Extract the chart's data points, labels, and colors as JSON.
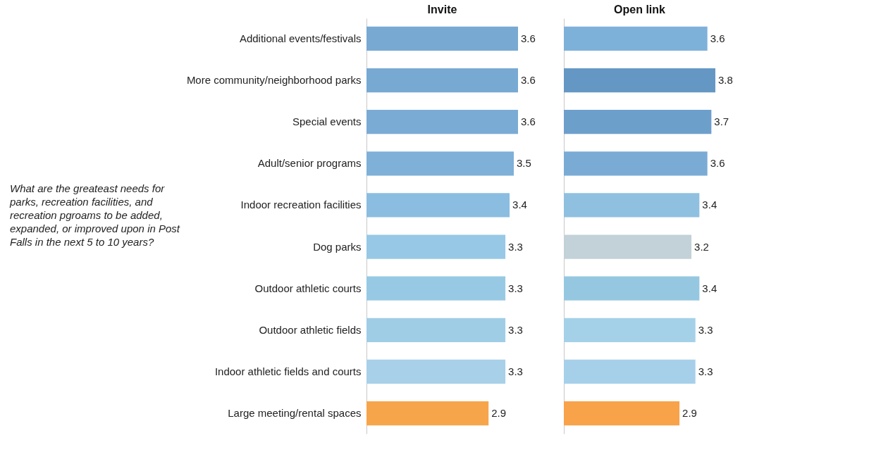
{
  "chart_data": [
    {
      "type": "bar",
      "orientation": "horizontal",
      "title": "Invite",
      "categories": [
        "Additional events/festivals",
        "More community/neighborhood parks",
        "Special events",
        "Adult/senior programs",
        "Indoor recreation facilities",
        "Dog parks",
        "Outdoor athletic courts",
        "Outdoor athletic fields",
        "Indoor athletic fields and courts",
        "Large meeting/rental spaces"
      ],
      "values": [
        3.6,
        3.6,
        3.6,
        3.5,
        3.4,
        3.3,
        3.3,
        3.3,
        3.3,
        2.9
      ],
      "colors": [
        "#78a9d3",
        "#78a9d3",
        "#7aabd5",
        "#7eb0d8",
        "#8bbde0",
        "#97c8e5",
        "#98c9e4",
        "#a0cde6",
        "#a8d0e8",
        "#f7a54a"
      ],
      "data_labels": true,
      "annotations": [
        "What are the greateast needs for parks, recreation facilities, and recreation pgroams to be added, expanded, or improved upon in Post Falls in the next 5 to 10 years?"
      ]
    },
    {
      "type": "bar",
      "orientation": "horizontal",
      "title": "Open link",
      "categories": [
        null,
        null,
        null,
        null,
        null,
        null,
        null,
        null,
        null,
        null
      ],
      "values": [
        3.6,
        3.8,
        3.7,
        3.6,
        3.4,
        3.2,
        3.4,
        3.3,
        3.3,
        2.9
      ],
      "colors": [
        "#7eb1d9",
        "#6597c4",
        "#6d9fcb",
        "#7aabd5",
        "#8fc0e0",
        "#c3d1d8",
        "#95c8e0",
        "#a4d1e8",
        "#a6d0ea",
        "#f8a24a"
      ],
      "data_labels": true,
      "tick_labels": false
    }
  ]
}
